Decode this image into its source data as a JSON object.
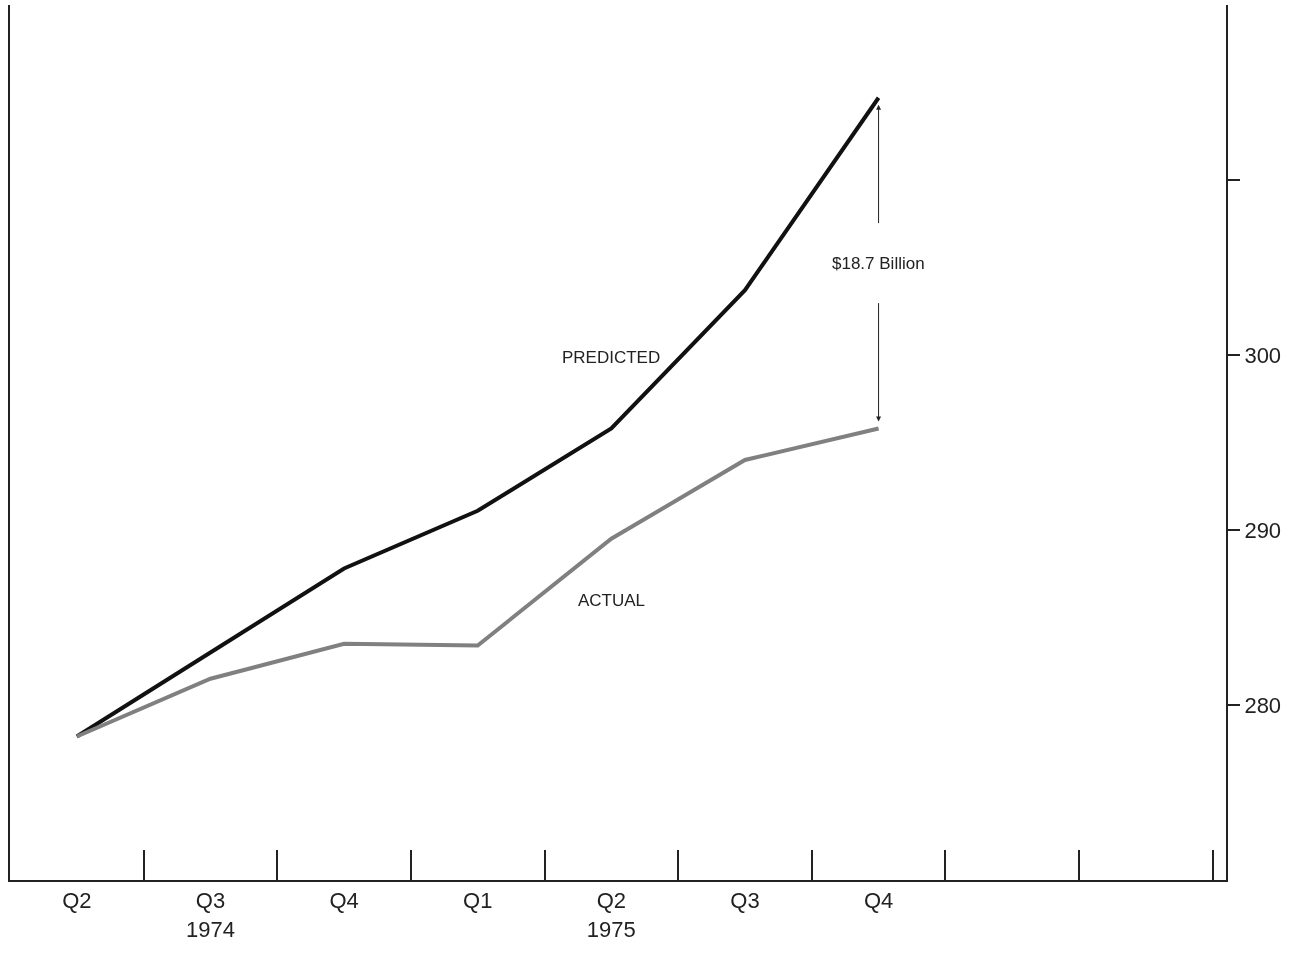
{
  "chart_data": {
    "type": "line",
    "categories": [
      "Q2",
      "Q3\n1974",
      "Q4",
      "Q1",
      "Q2\n1975",
      "Q3",
      "Q4",
      null,
      null
    ],
    "series": [
      {
        "name": "PREDICTED",
        "color": "#111111",
        "values": [
          278.2,
          283.0,
          287.8,
          291.1,
          295.8,
          303.7,
          314.7,
          null,
          null
        ]
      },
      {
        "name": "ACTUAL",
        "color": "#808080",
        "values": [
          278.2,
          281.5,
          283.5,
          283.4,
          289.5,
          294.0,
          295.8,
          null,
          null
        ]
      }
    ],
    "ylim": [
      270,
      320
    ],
    "yticks": [
      280,
      290,
      300,
      {
        "value": 310,
        "label": null
      }
    ],
    "annotations": [
      "$18.7 Billion"
    ],
    "grid": false,
    "legend": false,
    "marker": "none",
    "line_style": "solid"
  }
}
